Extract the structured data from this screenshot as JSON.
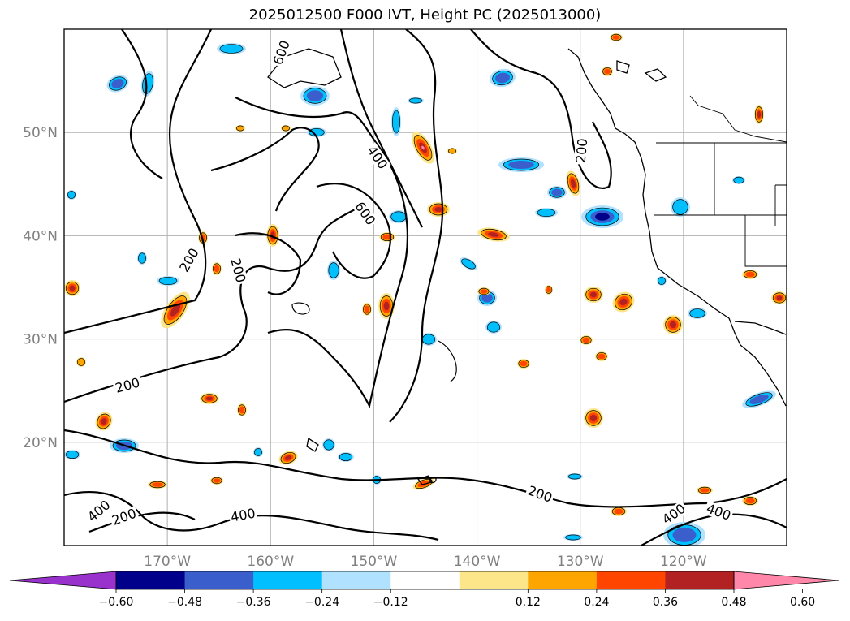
{
  "title": "2025012500 F000 IVT, Height PC (2025013000)",
  "map": {
    "lat_ticks": [
      {
        "label": "50°N",
        "lat": 50
      },
      {
        "label": "40°N",
        "lat": 40
      },
      {
        "label": "30°N",
        "lat": 30
      },
      {
        "label": "20°N",
        "lat": 20
      }
    ],
    "lon_ticks": [
      {
        "label": "170°W",
        "lon": -170
      },
      {
        "label": "160°W",
        "lon": -160
      },
      {
        "label": "150°W",
        "lon": -150
      },
      {
        "label": "140°W",
        "lon": -140
      },
      {
        "label": "130°W",
        "lon": -130
      },
      {
        "label": "120°W",
        "lon": -120
      }
    ],
    "lat_range": [
      10,
      60
    ],
    "lon_range": [
      -180,
      -110
    ],
    "gridlines": true,
    "contour_labels": [
      "600",
      "400",
      "600",
      "200",
      "200",
      "200",
      "200",
      "400",
      "200",
      "400",
      "200",
      "400",
      "400"
    ]
  },
  "colorbar": {
    "ticks": [
      "−0.60",
      "−0.48",
      "−0.36",
      "−0.24",
      "−0.12",
      "0.12",
      "0.24",
      "0.36",
      "0.48",
      "0.60"
    ],
    "colors": [
      "#9932cc",
      "#00008b",
      "#3a5fcd",
      "#00bfff",
      "#b0e2ff",
      "#ffffff",
      "#fde68a",
      "#ffa500",
      "#ff4500",
      "#b22222",
      "#ff88aa"
    ],
    "extend": "both"
  },
  "legend_colors": {
    "neg_strong": "#00008b",
    "neg_mid": "#3a5fcd",
    "neg_light": "#00bfff",
    "neg_faint": "#b0e2ff",
    "pos_faint": "#fde68a",
    "pos_light": "#ffa500",
    "pos_mid": "#ff4500",
    "pos_strong": "#b22222",
    "pos_max": "#ff88aa"
  }
}
